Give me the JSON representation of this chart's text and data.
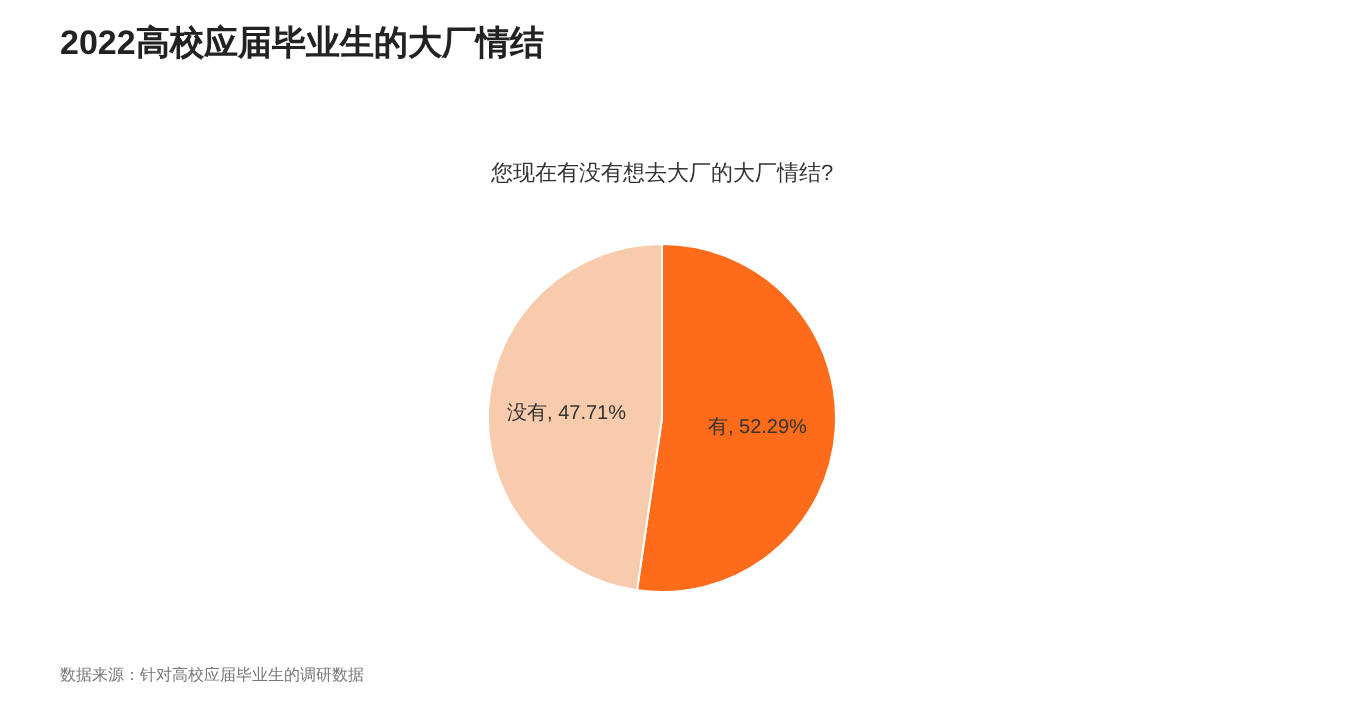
{
  "chart_data": {
    "type": "pie",
    "title": "2022高校应届毕业生的大厂情结",
    "subtitle": "您现在有没有想去大厂的大厂情结?",
    "categories": [
      "有",
      "没有"
    ],
    "values": [
      52.29,
      47.71
    ],
    "colors": [
      "#fe6b1a",
      "#f7cbab"
    ],
    "value_labels": [
      ", 52.29%",
      ", 47.71%"
    ],
    "annotations": [
      "数据来源：针对高校应届毕业生的调研数据"
    ]
  }
}
